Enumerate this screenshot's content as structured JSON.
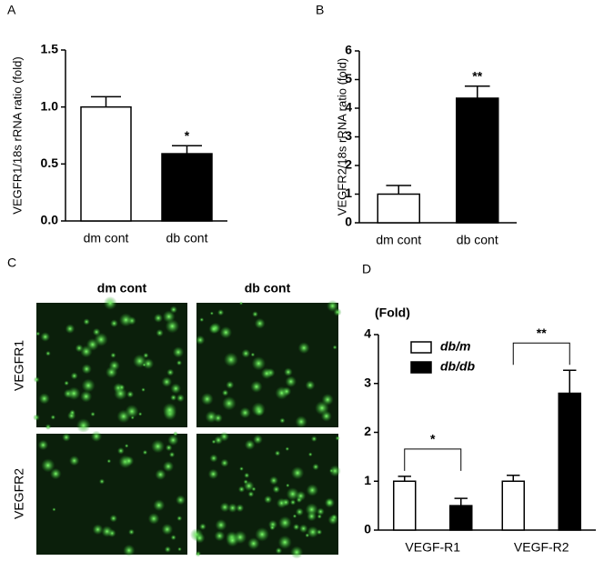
{
  "chart_data": [
    {
      "type": "bar",
      "panel_label": "A",
      "ylabel": "VEGFR1/18s rRNA ratio (fold)",
      "categories": [
        "dm cont",
        "db cont"
      ],
      "values": [
        1.0,
        0.59
      ],
      "errors": [
        0.09,
        0.07
      ],
      "colors": [
        "#ffffff",
        "#000000"
      ],
      "ylim": [
        0,
        1.5
      ],
      "yticks": [
        {
          "value": 0,
          "label": "0.0"
        },
        {
          "value": 0.5,
          "label": "0.5"
        },
        {
          "value": 1,
          "label": "1.0"
        },
        {
          "value": 1.5,
          "label": "1.5"
        }
      ],
      "annotations": [
        {
          "text": "*",
          "x": "db cont"
        }
      ]
    },
    {
      "type": "bar",
      "panel_label": "B",
      "ylabel": "VEGFR2/18s rRNA ratio (fold)",
      "categories": [
        "dm cont",
        "db cont"
      ],
      "values": [
        1.0,
        4.35
      ],
      "errors": [
        0.3,
        0.42
      ],
      "colors": [
        "#ffffff",
        "#000000"
      ],
      "ylim": [
        0,
        6
      ],
      "yticks": [
        0,
        1,
        2,
        3,
        4,
        5,
        6
      ],
      "annotations": [
        {
          "text": "**",
          "x": "db cont"
        }
      ]
    },
    {
      "type": "grouped-bar",
      "panel_label": "D",
      "title": "(Fold)",
      "categories": [
        "VEGF-R1",
        "VEGF-R2"
      ],
      "series": [
        {
          "name": "db/m",
          "color": "#ffffff",
          "values": [
            1.0,
            1.0
          ],
          "errors": [
            0.1,
            0.12
          ]
        },
        {
          "name": "db/db",
          "color": "#000000",
          "values": [
            0.5,
            2.8
          ],
          "errors": [
            0.15,
            0.47
          ]
        }
      ],
      "ylim": [
        0,
        4
      ],
      "yticks": [
        0,
        1,
        2,
        3,
        4
      ],
      "legend": "top-left",
      "annotations": [
        {
          "text": "*",
          "x": "VEGF-R1"
        },
        {
          "text": "**",
          "x": "VEGF-R2"
        }
      ]
    }
  ],
  "image_panel": {
    "panel_label": "C",
    "columns": [
      "dm cont",
      "db cont"
    ],
    "rows": [
      "VEGFR1",
      "VEGFR2"
    ]
  }
}
